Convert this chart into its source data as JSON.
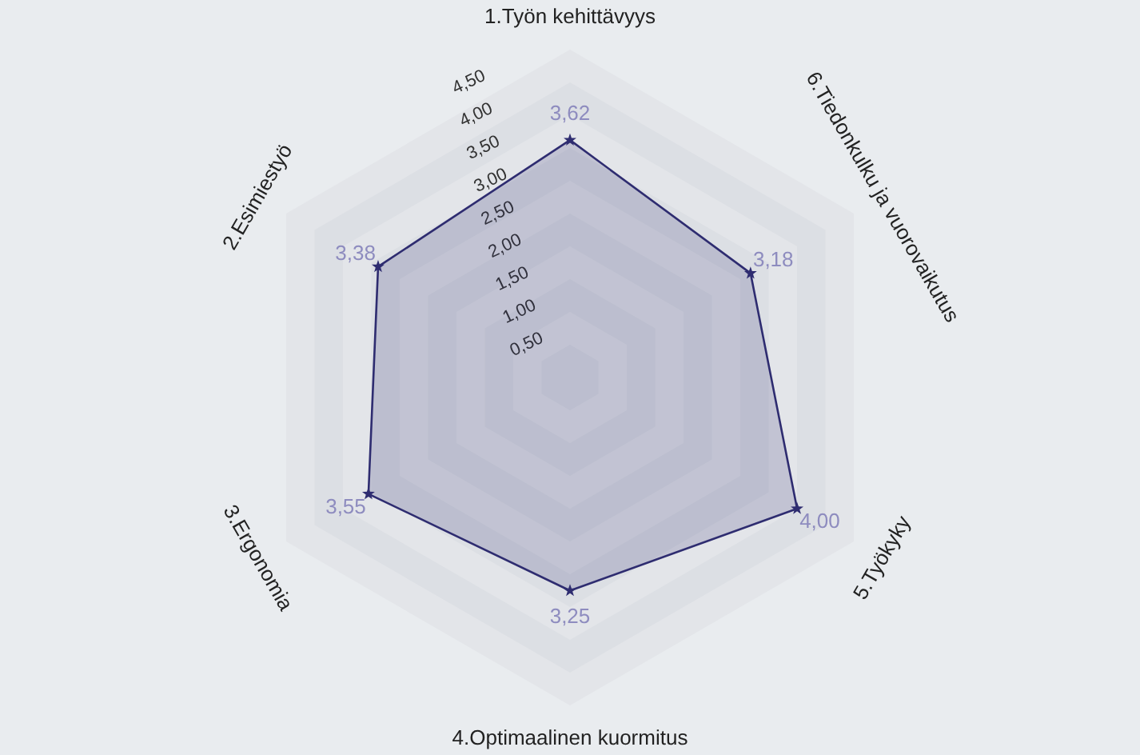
{
  "chart_data": {
    "type": "radar",
    "categories": [
      "1.Työn kehittävyys",
      "6.Tiedonkulku ja vuorovaikutus",
      "5.Työkyky",
      "4.Optimaalinen kuormitus",
      "3.Ergonomia",
      "2.Esimiestyö"
    ],
    "series": [
      {
        "color": "#2e2c70",
        "values": [
          3.62,
          3.18,
          4.0,
          3.25,
          3.55,
          3.38
        ],
        "value_labels": [
          "3,62",
          "3,18",
          "4,00",
          "3,25",
          "3,55",
          "3,38"
        ]
      }
    ],
    "ylim": [
      0,
      5
    ],
    "yticks": [
      {
        "value": 0.5,
        "label": "0,50"
      },
      {
        "value": 1,
        "label": "1,00"
      },
      {
        "value": 1.5,
        "label": "1,50"
      },
      {
        "value": 2,
        "label": "2,00"
      },
      {
        "value": 2.5,
        "label": "2,50"
      },
      {
        "value": 3,
        "label": "3,00"
      },
      {
        "value": 3.5,
        "label": "3,50"
      },
      {
        "value": 4,
        "label": "4,00"
      },
      {
        "value": 4.5,
        "label": "4,50"
      }
    ],
    "grid": true,
    "marker": "star"
  }
}
